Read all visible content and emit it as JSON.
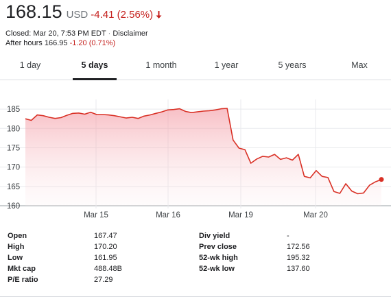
{
  "quote": {
    "price": "168.15",
    "currency": "USD",
    "change": "-4.41 (2.56%)",
    "closed_text": "Closed: Mar 20, 7:53 PM EDT",
    "separator": "·",
    "disclaimer": "Disclaimer",
    "after_hours_label": "After hours 166.95",
    "after_hours_change": "-1.20 (0.71%)",
    "down_color": "#c5221f"
  },
  "tabs": [
    {
      "label": "1 day"
    },
    {
      "label": "5 days",
      "active": true
    },
    {
      "label": "1 month"
    },
    {
      "label": "1 year"
    },
    {
      "label": "5 years"
    },
    {
      "label": "Max"
    }
  ],
  "chart_data": {
    "type": "area",
    "ylim": [
      160,
      186
    ],
    "yticks": [
      160,
      165,
      170,
      175,
      180,
      185
    ],
    "xticks": [
      "Mar 15",
      "Mar 16",
      "Mar 19",
      "Mar 20"
    ],
    "line_color": "#d93025",
    "grid": true,
    "series": [
      {
        "values": [
          182.5,
          182.1,
          183.5,
          183.3,
          182.9,
          182.6,
          182.8,
          183.4,
          183.9,
          184.0,
          183.7,
          184.2,
          183.6,
          183.6,
          183.5,
          183.3,
          183.0,
          182.7,
          182.9,
          182.6,
          183.2,
          183.5,
          183.9,
          184.3,
          184.8,
          184.9,
          185.1,
          184.4,
          184.1,
          184.3,
          184.5,
          184.6,
          184.8,
          185.1,
          185.2,
          177.0,
          174.9,
          174.5,
          171.0,
          172.1,
          172.8,
          172.6,
          173.3,
          172.0,
          172.4,
          171.8,
          173.3,
          167.6,
          167.2,
          169.1,
          167.6,
          167.3,
          163.7,
          163.2,
          165.7,
          163.8,
          163.1,
          163.3,
          165.3,
          166.2,
          166.8
        ]
      }
    ]
  },
  "stats": {
    "left": [
      {
        "label": "Open",
        "value": "167.47"
      },
      {
        "label": "High",
        "value": "170.20"
      },
      {
        "label": "Low",
        "value": "161.95"
      },
      {
        "label": "Mkt cap",
        "value": "488.48B"
      },
      {
        "label": "P/E ratio",
        "value": "27.29"
      }
    ],
    "right": [
      {
        "label": "Div yield",
        "value": "-"
      },
      {
        "label": "Prev close",
        "value": "172.56"
      },
      {
        "label": "52-wk high",
        "value": "195.32"
      },
      {
        "label": "52-wk low",
        "value": "137.60"
      }
    ]
  }
}
